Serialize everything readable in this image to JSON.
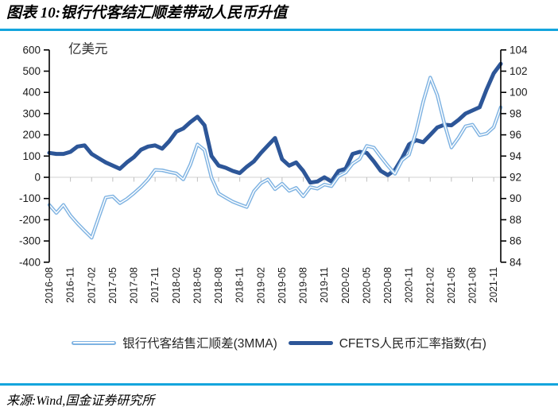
{
  "header": {
    "title": "图表 10:银行代客结汇顺差带动人民币升值"
  },
  "footer": {
    "source": "来源:Wind,国金证券研究所"
  },
  "legend": [
    {
      "label": "银行代客结售汇顺差(3MMA)"
    },
    {
      "label": "CFETS人民币汇率指数(右)"
    }
  ],
  "colors": {
    "accent_rule": "#14A5DD",
    "light_line": "#7FB3E2",
    "light_line_core": "#FFFFFF",
    "dark_line": "#2D5698",
    "zero_line": "#D9D9D9",
    "category_tick": "#BFBFBF",
    "axis": "#000000",
    "tick_text": "#1A1A1A"
  },
  "chart_data": {
    "type": "line",
    "unit_label": "亿美元",
    "grid": "zero-line-only",
    "legend_position": "bottom",
    "x_tick_every": 3,
    "x": [
      "2016-08",
      "2016-09",
      "2016-10",
      "2016-11",
      "2016-12",
      "2017-01",
      "2017-02",
      "2017-03",
      "2017-04",
      "2017-05",
      "2017-06",
      "2017-07",
      "2017-08",
      "2017-09",
      "2017-10",
      "2017-11",
      "2017-12",
      "2018-01",
      "2018-02",
      "2018-03",
      "2018-04",
      "2018-05",
      "2018-06",
      "2018-07",
      "2018-08",
      "2018-09",
      "2018-10",
      "2018-11",
      "2018-12",
      "2019-01",
      "2019-02",
      "2019-03",
      "2019-04",
      "2019-05",
      "2019-06",
      "2019-07",
      "2019-08",
      "2019-09",
      "2019-10",
      "2019-11",
      "2019-12",
      "2020-01",
      "2020-02",
      "2020-03",
      "2020-04",
      "2020-05",
      "2020-06",
      "2020-07",
      "2020-08",
      "2020-09",
      "2020-10",
      "2020-11",
      "2020-12",
      "2021-01",
      "2021-02",
      "2021-03",
      "2021-04",
      "2021-05",
      "2021-06",
      "2021-07",
      "2021-08",
      "2021-09",
      "2021-10",
      "2021-11",
      "2021-12"
    ],
    "x_tick_labels": [
      "2016-08",
      "2016-11",
      "2017-02",
      "2017-05",
      "2017-08",
      "2017-11",
      "2018-02",
      "2018-05",
      "2018-08",
      "2018-11",
      "2019-02",
      "2019-05",
      "2019-08",
      "2019-11",
      "2020-02",
      "2020-05",
      "2020-08",
      "2020-11",
      "2021-02",
      "2021-05",
      "2021-08",
      "2021-11"
    ],
    "left_axis": {
      "min": -400,
      "max": 600,
      "step": 100,
      "ticks": [
        600,
        500,
        400,
        300,
        200,
        100,
        0,
        -100,
        -200,
        -300,
        -400
      ]
    },
    "right_axis": {
      "min": 84,
      "max": 104,
      "step": 2,
      "ticks": [
        104,
        102,
        100,
        98,
        96,
        94,
        92,
        90,
        88,
        86,
        84
      ]
    },
    "series": [
      {
        "name": "银行代客结售汇顺差(3MMA)",
        "axis": "left",
        "color": "#7FB3E2",
        "style": "double-line",
        "values": [
          -130,
          -168,
          -130,
          -180,
          -218,
          -252,
          -285,
          -190,
          -95,
          -90,
          -122,
          -102,
          -75,
          -45,
          -10,
          35,
          33,
          25,
          18,
          -10,
          60,
          155,
          128,
          -2,
          -76,
          -96,
          -115,
          -128,
          -140,
          -66,
          -28,
          -10,
          -56,
          -30,
          -64,
          -50,
          -90,
          -46,
          -54,
          -34,
          -42,
          5,
          22,
          64,
          86,
          148,
          140,
          96,
          54,
          16,
          80,
          106,
          215,
          356,
          470,
          388,
          254,
          140,
          186,
          240,
          248,
          198,
          206,
          236,
          330
        ]
      },
      {
        "name": "CFETS人民币汇率指数(右)",
        "axis": "right",
        "color": "#2D5698",
        "style": "solid",
        "values": [
          94.3,
          94.2,
          94.2,
          94.4,
          94.9,
          95.0,
          94.2,
          93.8,
          93.4,
          93.1,
          92.8,
          93.4,
          93.9,
          94.6,
          94.9,
          95.0,
          94.7,
          95.4,
          96.3,
          96.6,
          97.2,
          97.7,
          96.9,
          94.0,
          93.1,
          92.9,
          92.6,
          92.4,
          93.0,
          93.5,
          94.3,
          95.0,
          95.7,
          93.7,
          93.1,
          93.4,
          92.6,
          91.5,
          91.6,
          92.0,
          91.6,
          92.6,
          92.8,
          94.2,
          94.4,
          94.3,
          93.5,
          92.6,
          92.2,
          92.7,
          93.8,
          95.1,
          95.5,
          95.3,
          96.0,
          96.7,
          96.95,
          96.9,
          97.4,
          98.0,
          98.3,
          98.6,
          100.3,
          101.8,
          102.7
        ]
      }
    ]
  }
}
